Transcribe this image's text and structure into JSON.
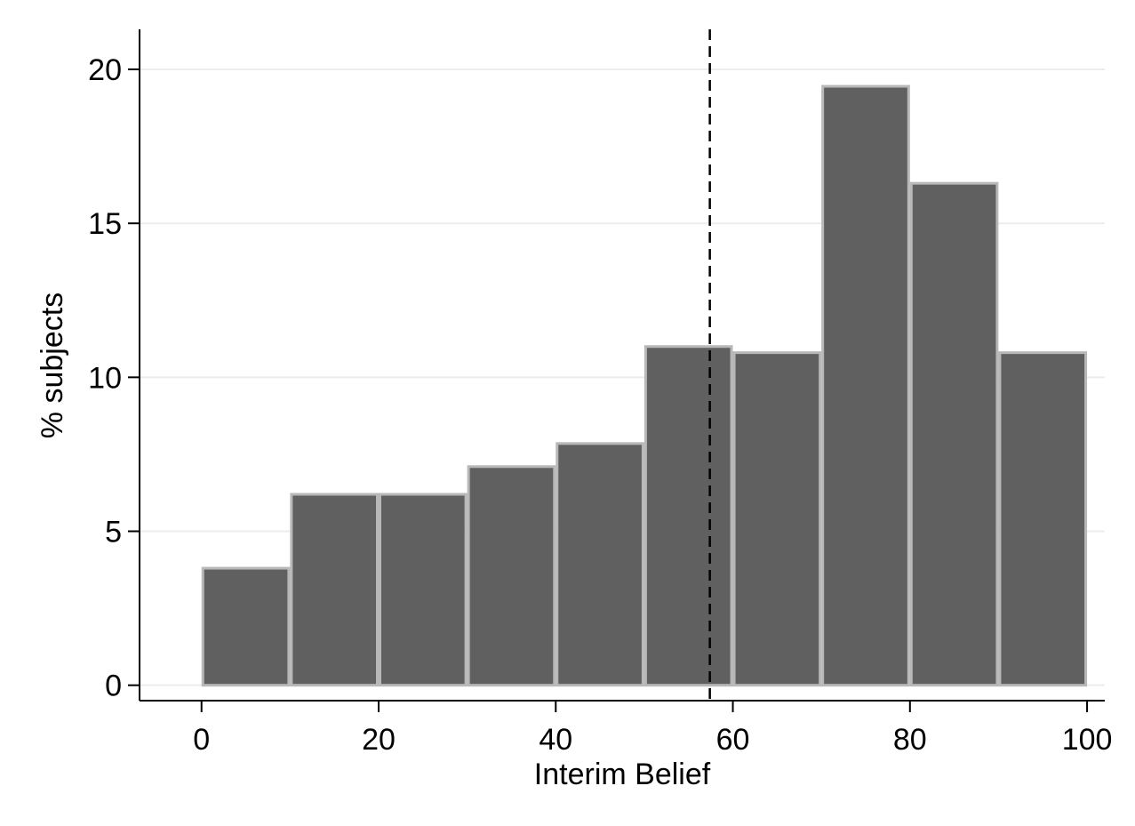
{
  "chart_data": {
    "type": "bar",
    "title": "",
    "xlabel": "Interim Belief",
    "ylabel": "% subjects",
    "bin_edges": [
      0,
      10,
      20,
      30,
      40,
      50,
      60,
      70,
      80,
      90,
      100
    ],
    "values": [
      3.8,
      6.2,
      6.2,
      7.1,
      7.85,
      11.0,
      10.8,
      19.45,
      16.3,
      10.8
    ],
    "xlim": [
      -7,
      102
    ],
    "ylim": [
      -0.5,
      21.3
    ],
    "x_ticks": [
      0,
      20,
      40,
      60,
      80,
      100
    ],
    "x_tick_labels": [
      "0",
      "20",
      "40",
      "60",
      "80",
      "100"
    ],
    "y_ticks": [
      0,
      5,
      10,
      15,
      20
    ],
    "y_tick_labels": [
      "0",
      "5",
      "10",
      "15",
      "20"
    ],
    "reference_line_x": 57.4,
    "grid": true,
    "colors": {
      "bar_fill": "#606060",
      "bar_edge": "#b8b8b8",
      "grid": "#e8eef0",
      "axis": "#000000",
      "reference_line": "#000000"
    }
  }
}
